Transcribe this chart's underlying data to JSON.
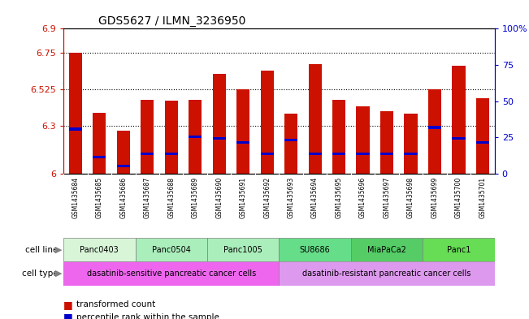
{
  "title": "GDS5627 / ILMN_3236950",
  "samples": [
    "GSM1435684",
    "GSM1435685",
    "GSM1435686",
    "GSM1435687",
    "GSM1435688",
    "GSM1435689",
    "GSM1435690",
    "GSM1435691",
    "GSM1435692",
    "GSM1435693",
    "GSM1435694",
    "GSM1435695",
    "GSM1435696",
    "GSM1435697",
    "GSM1435698",
    "GSM1435699",
    "GSM1435700",
    "GSM1435701"
  ],
  "bar_heights": [
    6.75,
    6.38,
    6.27,
    6.46,
    6.455,
    6.46,
    6.62,
    6.525,
    6.64,
    6.375,
    6.68,
    6.46,
    6.42,
    6.39,
    6.375,
    6.525,
    6.67,
    6.47
  ],
  "blue_positions": [
    6.27,
    6.095,
    6.04,
    6.115,
    6.115,
    6.22,
    6.21,
    6.185,
    6.115,
    6.2,
    6.115,
    6.115,
    6.115,
    6.115,
    6.115,
    6.28,
    6.21,
    6.185
  ],
  "blue_heights": [
    0.018,
    0.018,
    0.018,
    0.018,
    0.018,
    0.018,
    0.018,
    0.018,
    0.018,
    0.018,
    0.018,
    0.018,
    0.018,
    0.018,
    0.018,
    0.018,
    0.018,
    0.018
  ],
  "ymin": 6.0,
  "ymax": 6.9,
  "yticks": [
    6.0,
    6.3,
    6.525,
    6.75,
    6.9
  ],
  "ytick_labels": [
    "6",
    "6.3",
    "6.525",
    "6.75",
    "6.9"
  ],
  "right_yticks": [
    0,
    25,
    50,
    75,
    100
  ],
  "right_ytick_labels": [
    "0",
    "25",
    "50",
    "75",
    "100%"
  ],
  "grid_dotted_lines": [
    6.3,
    6.525,
    6.75
  ],
  "cell_lines": [
    {
      "name": "Panc0403",
      "start": 0,
      "end": 3,
      "color": "#d8f5d8"
    },
    {
      "name": "Panc0504",
      "start": 3,
      "end": 6,
      "color": "#aaeebb"
    },
    {
      "name": "Panc1005",
      "start": 6,
      "end": 9,
      "color": "#aaeebb"
    },
    {
      "name": "SU8686",
      "start": 9,
      "end": 12,
      "color": "#66dd88"
    },
    {
      "name": "MiaPaCa2",
      "start": 12,
      "end": 15,
      "color": "#55cc66"
    },
    {
      "name": "Panc1",
      "start": 15,
      "end": 18,
      "color": "#66dd55"
    }
  ],
  "cell_types": [
    {
      "name": "dasatinib-sensitive pancreatic cancer cells",
      "start": 0,
      "end": 9,
      "color": "#ee66ee"
    },
    {
      "name": "dasatinib-resistant pancreatic cancer cells",
      "start": 9,
      "end": 18,
      "color": "#dd99ee"
    }
  ],
  "bar_color": "#cc1100",
  "blue_color": "#0000cc",
  "bar_width": 0.55,
  "bg_color": "#ffffff",
  "left_axis_color": "#cc1100",
  "right_axis_color": "#0000cc",
  "plot_bg_color": "#ffffff",
  "xtick_bg_color": "#c8c8c8"
}
